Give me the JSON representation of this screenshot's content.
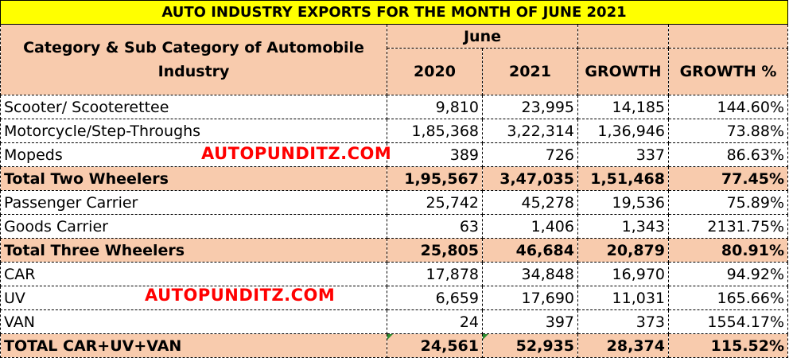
{
  "title": "AUTO INDUSTRY EXPORTS FOR THE MONTH OF JUNE 2021",
  "header": {
    "category": "Category & Sub Category of Automobile Industry",
    "month": "June",
    "col_2020": "2020",
    "col_2021": "2021",
    "col_growth": "GROWTH",
    "col_growth_pct": "GROWTH %"
  },
  "rows": [
    {
      "label": "Scooter/ Scooterettee",
      "v2020": "9,810",
      "v2021": "23,995",
      "growth": "14,185",
      "pct": "144.60%"
    },
    {
      "label": "Motorcycle/Step-Throughs",
      "v2020": "1,85,368",
      "v2021": "3,22,314",
      "growth": "1,36,946",
      "pct": "73.88%"
    },
    {
      "label": "Mopeds",
      "v2020": "389",
      "v2021": "726",
      "growth": "337",
      "pct": "86.63%"
    },
    {
      "label": "Total  Two Wheelers",
      "v2020": "1,95,567",
      "v2021": "3,47,035",
      "growth": "1,51,468",
      "pct": "77.45%"
    },
    {
      "label": "Passenger Carrier",
      "v2020": "25,742",
      "v2021": "45,278",
      "growth": "19,536",
      "pct": "75.89%"
    },
    {
      "label": "Goods Carrier",
      "v2020": "63",
      "v2021": "1,406",
      "growth": "1,343",
      "pct": "2131.75%"
    },
    {
      "label": "Total Three Wheelers",
      "v2020": "25,805",
      "v2021": "46,684",
      "growth": "20,879",
      "pct": "80.91%"
    },
    {
      "label": "CAR",
      "v2020": "17,878",
      "v2021": "34,848",
      "growth": "16,970",
      "pct": "94.92%"
    },
    {
      "label": "UV",
      "v2020": "6,659",
      "v2021": "17,690",
      "growth": "11,031",
      "pct": "165.66%"
    },
    {
      "label": "VAN",
      "v2020": "24",
      "v2021": "397",
      "growth": "373",
      "pct": "1554.17%"
    },
    {
      "label": "TOTAL CAR+UV+VAN",
      "v2020": "24,561",
      "v2021": "52,935",
      "growth": "28,374",
      "pct": "115.52%"
    }
  ],
  "watermarks": [
    "AUTOPUNDITZ.COM",
    "AUTOPUNDITZ.COM"
  ],
  "colors": {
    "title_bg": "#ffff00",
    "header_bg": "#f8cbad",
    "watermark": "#ff0000"
  }
}
